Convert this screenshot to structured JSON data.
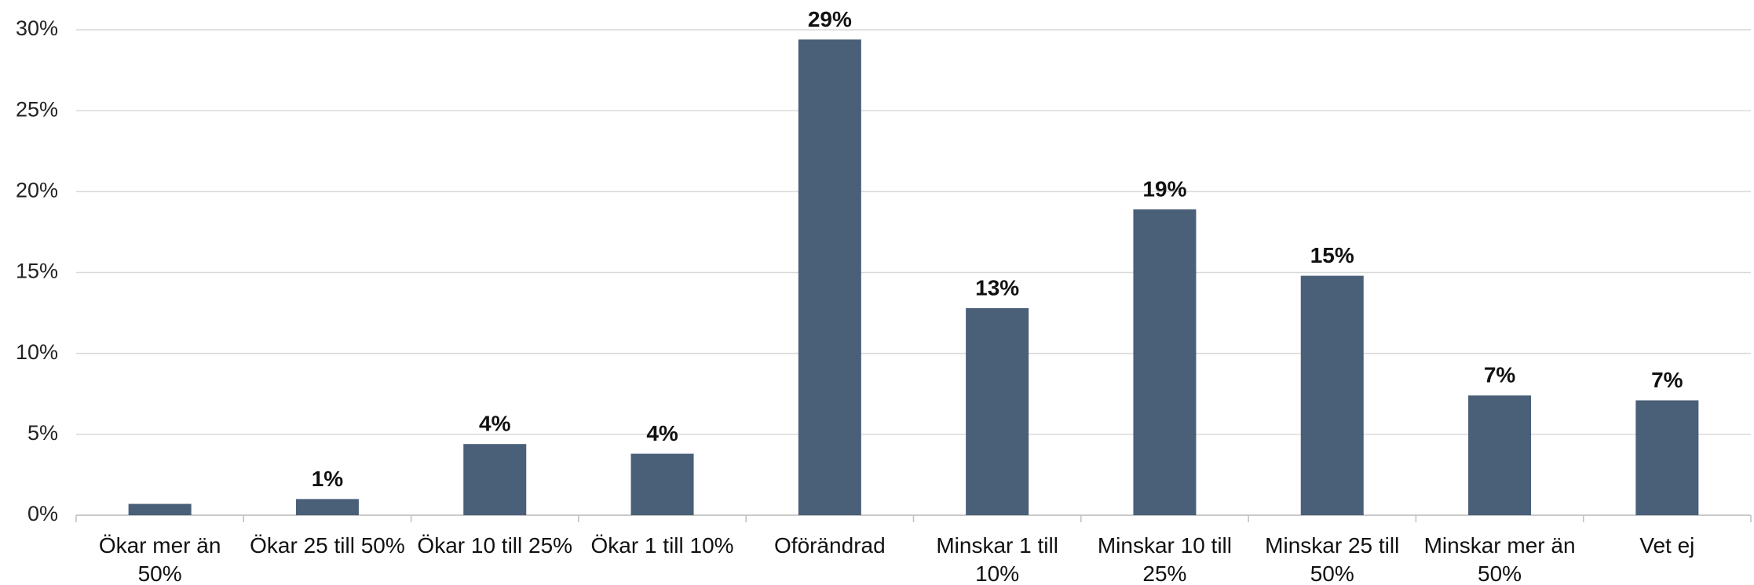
{
  "chart_data": {
    "type": "bar",
    "categories": [
      "Ökar mer än 50%",
      "Ökar 25 till 50%",
      "Ökar 10 till 25%",
      "Ökar 1 till 10%",
      "Oförändrad",
      "Minskar 1 till 10%",
      "Minskar 10 till 25%",
      "Minskar 25 till 50%",
      "Minskar mer än 50%",
      "Vet ej"
    ],
    "values": [
      0.7,
      1.0,
      4.4,
      3.8,
      29.4,
      12.8,
      18.9,
      14.8,
      7.4,
      7.1
    ],
    "value_labels": [
      null,
      "1%",
      "4%",
      "4%",
      "29%",
      "13%",
      "19%",
      "15%",
      "7%",
      "7%"
    ],
    "color": "#4a5f78",
    "ylim": [
      0,
      30
    ],
    "yticks": [
      {
        "value": 0,
        "label": "0%"
      },
      {
        "value": 5,
        "label": "5%"
      },
      {
        "value": 10,
        "label": "10%"
      },
      {
        "value": 15,
        "label": "15%"
      },
      {
        "value": 20,
        "label": "20%"
      },
      {
        "value": 25,
        "label": "25%"
      },
      {
        "value": 30,
        "label": "30%"
      }
    ],
    "grid": true
  }
}
